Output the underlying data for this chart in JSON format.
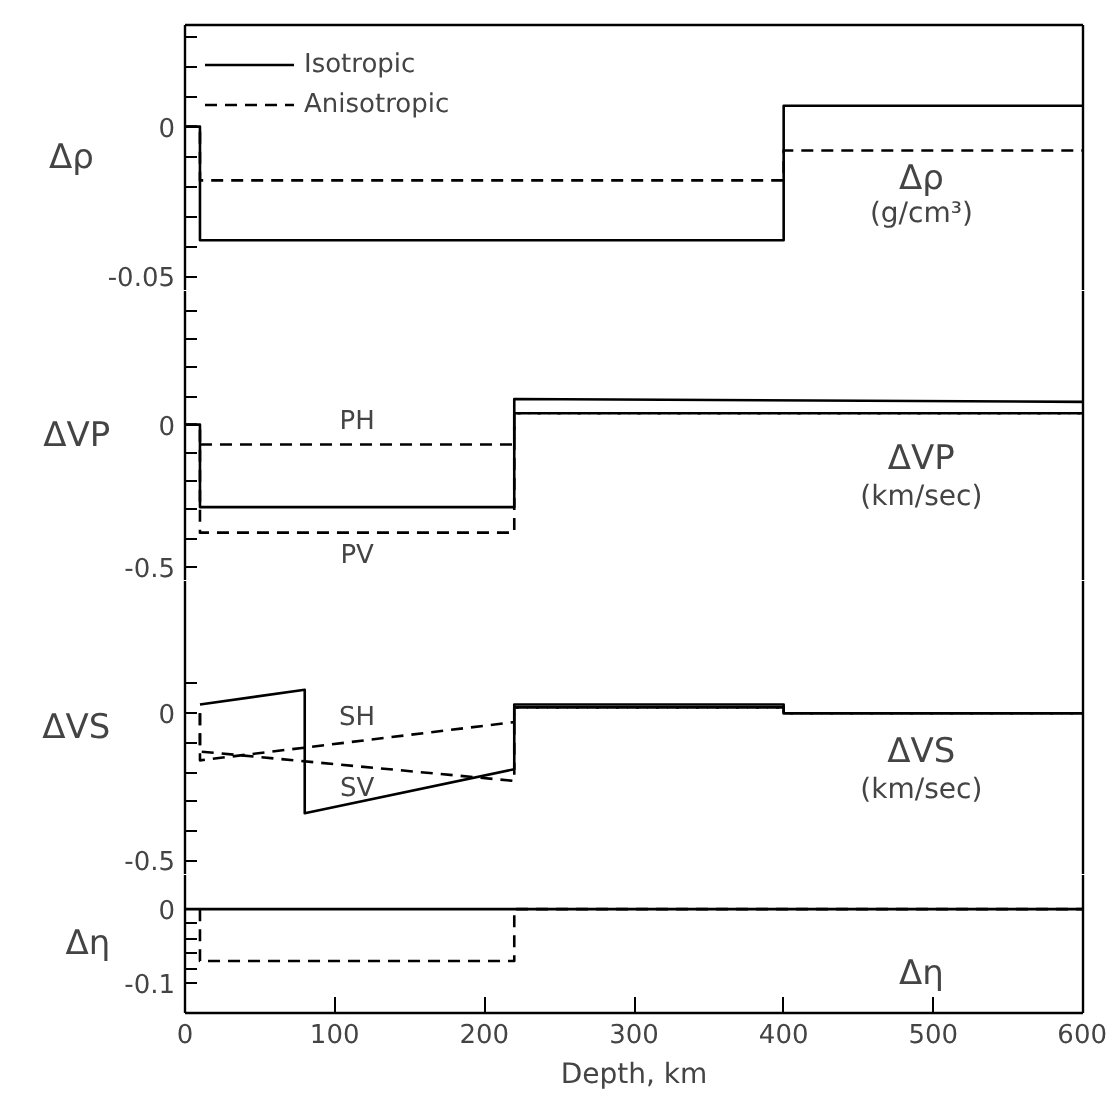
{
  "chart_data": [
    {
      "type": "line",
      "ylabel": "Δρ",
      "xlim": [
        0,
        600
      ],
      "ylim": [
        -0.055,
        0.034
      ],
      "yticks": [
        {
          "value": 0.03,
          "label": null
        },
        {
          "value": 0.02,
          "label": null
        },
        {
          "value": 0.01,
          "label": null
        },
        0,
        {
          "value": -0.01,
          "label": null
        },
        {
          "value": -0.02,
          "label": null
        },
        {
          "value": -0.03,
          "label": null
        },
        {
          "value": -0.04,
          "label": null
        },
        -0.05
      ],
      "tick_labels": "y",
      "grid": false,
      "legend": "top left",
      "annotations": [
        "Δρ",
        "(g/cm³)"
      ],
      "series": [
        {
          "name": "Isotropic",
          "color": "#000000",
          "line_style": "solid",
          "x": [
            0,
            10,
            10,
            400,
            400,
            600
          ],
          "values": [
            0,
            0,
            -0.038,
            -0.038,
            0.007,
            0.007
          ]
        },
        {
          "name": "Anisotropic",
          "color": "#000000",
          "line_style": "dashed",
          "x": [
            0,
            10,
            10,
            400,
            400,
            600
          ],
          "values": [
            0,
            0,
            -0.018,
            -0.018,
            -0.008,
            -0.008
          ]
        }
      ]
    },
    {
      "type": "line",
      "ylabel": "ΔVP",
      "xlim": [
        0,
        600
      ],
      "ylim": [
        -0.55,
        0.47
      ],
      "yticks": [
        {
          "value": 0.4,
          "label": null
        },
        {
          "value": 0.3,
          "label": null
        },
        {
          "value": 0.2,
          "label": null
        },
        {
          "value": 0.1,
          "label": null
        },
        0,
        {
          "value": -0.1,
          "label": null
        },
        {
          "value": -0.2,
          "label": null
        },
        {
          "value": -0.3,
          "label": null
        },
        {
          "value": -0.4,
          "label": null
        },
        -0.5
      ],
      "tick_labels": "y",
      "grid": false,
      "annotations": [
        "ΔVP",
        "(km/sec)"
      ],
      "series": [
        {
          "color": "#000000",
          "line_style": "solid",
          "x": [
            0,
            10,
            10,
            220,
            220,
            600
          ],
          "values": [
            0,
            0,
            -0.29,
            -0.29,
            0.09,
            0.08
          ]
        },
        {
          "name": "PH",
          "color": "#000000",
          "line_style": "dashed",
          "x": [
            10,
            220,
            220,
            600
          ],
          "values": [
            -0.07,
            -0.07,
            0.04,
            0.04
          ]
        },
        {
          "name": "PV",
          "color": "#000000",
          "line_style": "dashed",
          "x": [
            0,
            10,
            10,
            220,
            220,
            600
          ],
          "values": [
            0,
            0,
            -0.38,
            -0.38,
            0.04,
            0.04
          ]
        }
      ]
    },
    {
      "type": "line",
      "ylabel": "ΔVS",
      "xlim": [
        0,
        600
      ],
      "ylim": [
        -0.55,
        0.45
      ],
      "yticks": [
        {
          "value": 0.1,
          "label": null
        },
        0,
        {
          "value": -0.1,
          "label": null
        },
        {
          "value": -0.2,
          "label": null
        },
        {
          "value": -0.3,
          "label": null
        },
        {
          "value": -0.4,
          "label": null
        },
        -0.5
      ],
      "tick_labels": "y",
      "grid": false,
      "annotations": [
        "ΔVS",
        "(km/sec)"
      ],
      "series": [
        {
          "color": "#000000",
          "line_style": "solid",
          "x": [
            10,
            80,
            80,
            220,
            220,
            400,
            400,
            600
          ],
          "values": [
            0.03,
            0.08,
            -0.34,
            -0.19,
            0.03,
            0.03,
            0,
            0
          ]
        },
        {
          "name": "SH",
          "color": "#000000",
          "line_style": "dashed",
          "x": [
            10,
            10,
            220,
            220,
            400,
            400,
            600
          ],
          "values": [
            0,
            -0.16,
            -0.03,
            0.02,
            0.02,
            0,
            0
          ]
        },
        {
          "name": "SV",
          "color": "#000000",
          "line_style": "dashed",
          "x": [
            10,
            10,
            220,
            220,
            400,
            400,
            600
          ],
          "values": [
            0,
            -0.13,
            -0.23,
            0.02,
            0.02,
            0,
            0
          ]
        }
      ]
    },
    {
      "type": "line",
      "ylabel": "Δη",
      "xlabel": "Depth, km",
      "xlim": [
        0,
        600
      ],
      "xticks": [
        0,
        100,
        200,
        300,
        400,
        500,
        600
      ],
      "ylim": [
        -0.14,
        0.046
      ],
      "yticks": [
        0,
        {
          "value": -0.02,
          "label": null
        },
        {
          "value": -0.04,
          "label": null
        },
        {
          "value": -0.06,
          "label": null
        },
        {
          "value": -0.08,
          "label": null
        },
        -0.1
      ],
      "grid": false,
      "annotations": [
        "Δη"
      ],
      "series": [
        {
          "color": "#000000",
          "line_style": "solid",
          "x": [
            0,
            600
          ],
          "values": [
            0,
            0
          ]
        },
        {
          "color": "#000000",
          "line_style": "dashed",
          "x": [
            10,
            10,
            220,
            220,
            600
          ],
          "values": [
            0,
            -0.07,
            -0.07,
            0,
            0
          ]
        }
      ]
    }
  ]
}
